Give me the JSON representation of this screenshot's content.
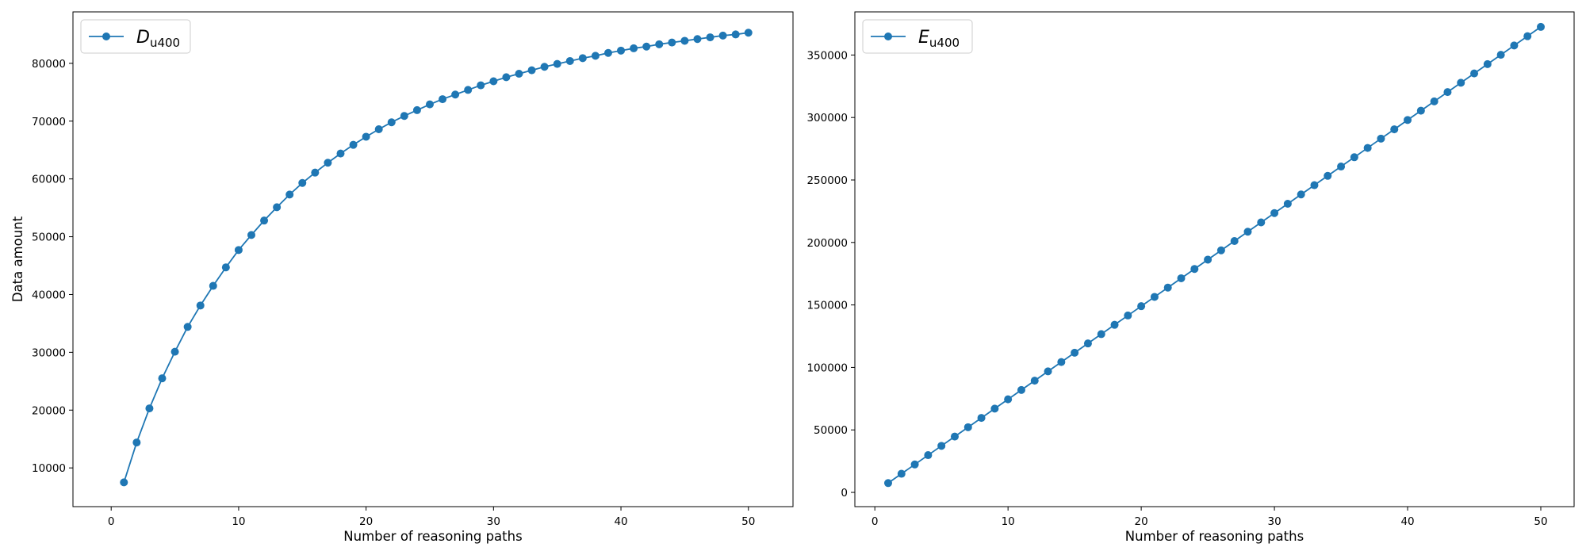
{
  "chart_data": [
    {
      "type": "line",
      "xlabel": "Number of reasoning paths",
      "ylabel": "Data amount",
      "xlim": [
        -3,
        53.5
      ],
      "ylim": [
        3300,
        88900
      ],
      "xticks": [
        0,
        10,
        20,
        30,
        40,
        50
      ],
      "yticks": [
        10000,
        20000,
        30000,
        40000,
        50000,
        60000,
        70000,
        80000
      ],
      "grid": false,
      "legend_position": "top-left",
      "series": [
        {
          "name_main": "D",
          "name_sub": "u400",
          "color": "#1f77b4",
          "marker": "circle",
          "x": [
            1,
            2,
            3,
            4,
            5,
            6,
            7,
            8,
            9,
            10,
            11,
            12,
            13,
            14,
            15,
            16,
            17,
            18,
            19,
            20,
            21,
            22,
            23,
            24,
            25,
            26,
            27,
            28,
            29,
            30,
            31,
            32,
            33,
            34,
            35,
            36,
            37,
            38,
            39,
            40,
            41,
            42,
            43,
            44,
            45,
            46,
            47,
            48,
            49,
            50
          ],
          "values": [
            7500,
            14400,
            20300,
            25500,
            30100,
            34400,
            38100,
            41500,
            44700,
            47700,
            50300,
            52800,
            55100,
            57300,
            59300,
            61100,
            62800,
            64400,
            65900,
            67300,
            68600,
            69800,
            70900,
            71900,
            72900,
            73800,
            74600,
            75400,
            76200,
            76900,
            77600,
            78200,
            78800,
            79400,
            79900,
            80400,
            80900,
            81300,
            81800,
            82200,
            82600,
            82900,
            83300,
            83600,
            83900,
            84200,
            84500,
            84800,
            85000,
            85300
          ]
        }
      ]
    },
    {
      "type": "line",
      "xlabel": "Number of reasoning paths",
      "ylabel": "",
      "xlim": [
        -1.5,
        52.5
      ],
      "ylim": [
        -11400,
        384500
      ],
      "xticks": [
        0,
        10,
        20,
        30,
        40,
        50
      ],
      "yticks": [
        0,
        50000,
        100000,
        150000,
        200000,
        250000,
        300000,
        350000
      ],
      "grid": false,
      "legend_position": "top-left",
      "series": [
        {
          "name_main": "E",
          "name_sub": "u400",
          "color": "#1f77b4",
          "marker": "circle",
          "x": [
            1,
            2,
            3,
            4,
            5,
            6,
            7,
            8,
            9,
            10,
            11,
            12,
            13,
            14,
            15,
            16,
            17,
            18,
            19,
            20,
            21,
            22,
            23,
            24,
            25,
            26,
            27,
            28,
            29,
            30,
            31,
            32,
            33,
            34,
            35,
            36,
            37,
            38,
            39,
            40,
            41,
            42,
            43,
            44,
            45,
            46,
            47,
            48,
            49,
            50
          ],
          "values": [
            7450,
            14900,
            22350,
            29800,
            37250,
            44700,
            52150,
            59600,
            67050,
            74500,
            81950,
            89400,
            96850,
            104300,
            111750,
            119200,
            126650,
            134100,
            141550,
            149000,
            156450,
            163900,
            171350,
            178800,
            186250,
            193700,
            201150,
            208600,
            216050,
            223500,
            230950,
            238400,
            245850,
            253300,
            260750,
            268200,
            275650,
            283100,
            290550,
            298000,
            305450,
            312900,
            320350,
            327800,
            335250,
            342700,
            350150,
            357600,
            365050,
            372500
          ]
        }
      ]
    }
  ]
}
